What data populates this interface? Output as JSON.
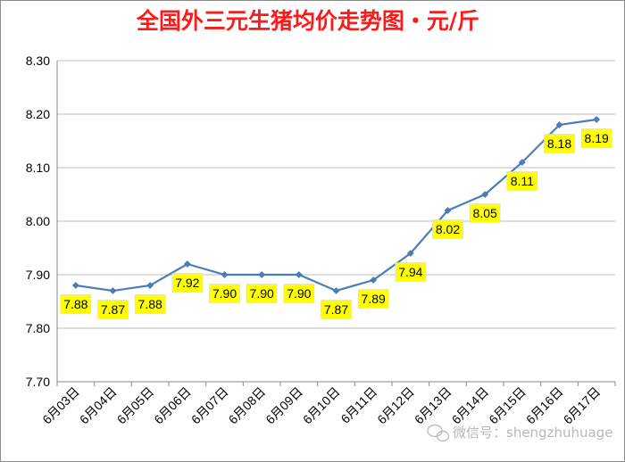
{
  "chart_data": {
    "type": "line",
    "title": "全国外三元生猪均价走势图・元/斤",
    "categories": [
      "6月03日",
      "6月04日",
      "6月05日",
      "6月06日",
      "6月07日",
      "6月08日",
      "6月09日",
      "6月10日",
      "6月11日",
      "6月12日",
      "6月13日",
      "6月14日",
      "6月15日",
      "6月16日",
      "6月17日"
    ],
    "values": [
      7.88,
      7.87,
      7.88,
      7.92,
      7.9,
      7.9,
      7.9,
      7.87,
      7.89,
      7.94,
      8.02,
      8.05,
      8.11,
      8.18,
      8.19
    ],
    "data_labels": [
      "7.88",
      "7.87",
      "7.88",
      "7.92",
      "7.90",
      "7.90",
      "7.90",
      "7.87",
      "7.89",
      "7.94",
      "8.02",
      "8.05",
      "8.11",
      "8.18",
      "8.19"
    ],
    "ylim": [
      7.7,
      8.3
    ],
    "yticks": [
      "7.70",
      "7.80",
      "7.90",
      "8.00",
      "8.10",
      "8.20",
      "8.30"
    ],
    "xlabel": "",
    "ylabel": "",
    "grid": true,
    "legend": "none",
    "colors": {
      "line": "#4a7ebb",
      "label_box": "#ffff00",
      "title": "#ff1a1a"
    }
  },
  "watermark": {
    "text": "微信号：shengzhuhuage",
    "icon": "wechat-icon"
  }
}
